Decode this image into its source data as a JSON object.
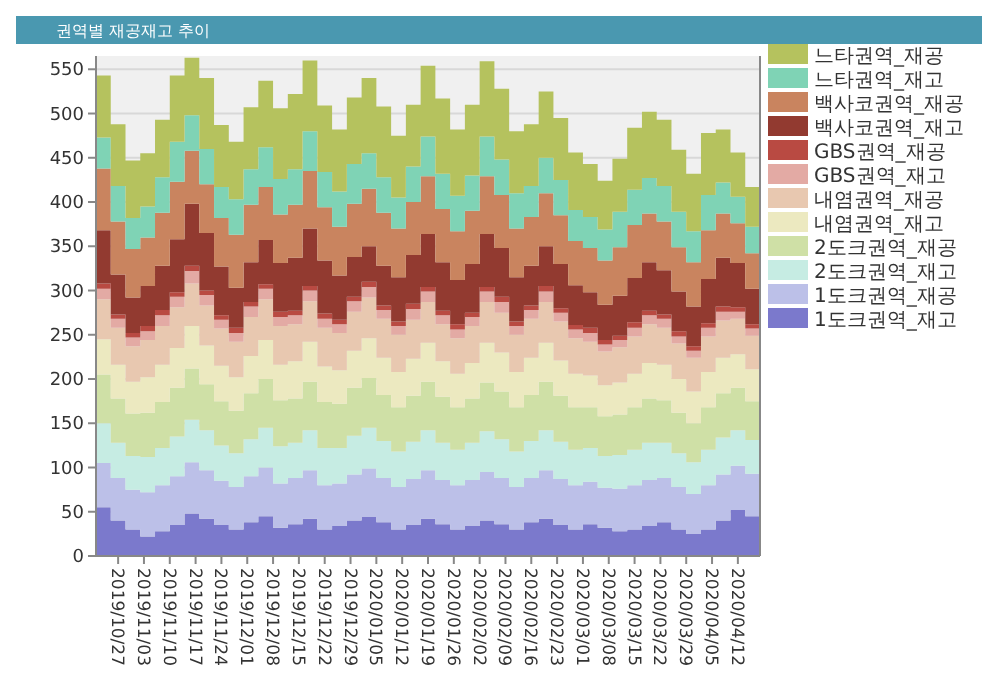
{
  "chart_data": {
    "type": "area",
    "title": "권역별 재공재고 추이",
    "stacked": true,
    "legend": "right",
    "grid": "y",
    "ylim": [
      0,
      565
    ],
    "yticks": [
      0,
      50,
      100,
      150,
      200,
      250,
      300,
      350,
      400,
      450,
      500,
      550
    ],
    "xlim": [
      "2019-10-21",
      "2020-04-18"
    ],
    "xticks": [
      {
        "value": "2019-10-27",
        "label": "2019/10/27"
      },
      {
        "value": "2019-11-03",
        "label": "2019/11/03"
      },
      {
        "value": "2019-11-10",
        "label": "2019/11/10"
      },
      {
        "value": "2019-11-17",
        "label": "2019/11/17"
      },
      {
        "value": "2019-11-24",
        "label": "2019/11/24"
      },
      {
        "value": "2019-12-01",
        "label": "2019/12/01"
      },
      {
        "value": "2019-12-08",
        "label": "2019/12/08"
      },
      {
        "value": "2019-12-15",
        "label": "2019/12/15"
      },
      {
        "value": "2019-12-22",
        "label": "2019/12/22"
      },
      {
        "value": "2019-12-29",
        "label": "2019/12/29"
      },
      {
        "value": "2020-01-05",
        "label": "2020/01/05"
      },
      {
        "value": "2020-01-12",
        "label": "2020/01/12"
      },
      {
        "value": "2020-01-19",
        "label": "2020/01/19"
      },
      {
        "value": "2020-01-26",
        "label": "2020/01/26"
      },
      {
        "value": "2020-02-02",
        "label": "2020/02/02"
      },
      {
        "value": "2020-02-09",
        "label": "2020/02/09"
      },
      {
        "value": "2020-02-16",
        "label": "2020/02/16"
      },
      {
        "value": "2020-02-23",
        "label": "2020/02/23"
      },
      {
        "value": "2020-03-01",
        "label": "2020/03/01"
      },
      {
        "value": "2020-03-08",
        "label": "2020/03/08"
      },
      {
        "value": "2020-03-15",
        "label": "2020/03/15"
      },
      {
        "value": "2020-03-22",
        "label": "2020/03/22"
      },
      {
        "value": "2020-03-29",
        "label": "2020/03/29"
      },
      {
        "value": "2020-04-05",
        "label": "2020/04/05"
      },
      {
        "value": "2020-04-12",
        "label": "2020/04/12"
      }
    ],
    "x": [
      "2019-10-21",
      "2019-10-25",
      "2019-10-29",
      "2019-11-02",
      "2019-11-06",
      "2019-11-10",
      "2019-11-14",
      "2019-11-18",
      "2019-11-22",
      "2019-11-26",
      "2019-11-30",
      "2019-12-04",
      "2019-12-08",
      "2019-12-12",
      "2019-12-16",
      "2019-12-20",
      "2019-12-24",
      "2019-12-28",
      "2020-01-01",
      "2020-01-05",
      "2020-01-09",
      "2020-01-13",
      "2020-01-17",
      "2020-01-21",
      "2020-01-25",
      "2020-01-29",
      "2020-02-02",
      "2020-02-06",
      "2020-02-10",
      "2020-02-14",
      "2020-02-18",
      "2020-02-22",
      "2020-02-26",
      "2020-03-01",
      "2020-03-05",
      "2020-03-09",
      "2020-03-13",
      "2020-03-17",
      "2020-03-21",
      "2020-03-25",
      "2020-03-29",
      "2020-04-02",
      "2020-04-06",
      "2020-04-10",
      "2020-04-14",
      "2020-04-18"
    ],
    "series": [
      {
        "name": "1도크권역_재고",
        "color": "#7b79cc",
        "values": [
          55,
          40,
          30,
          22,
          28,
          35,
          48,
          42,
          35,
          30,
          38,
          45,
          32,
          36,
          42,
          30,
          34,
          40,
          44,
          38,
          30,
          35,
          42,
          36,
          30,
          34,
          40,
          36,
          30,
          38,
          42,
          35,
          30,
          36,
          32,
          28,
          30,
          34,
          38,
          30,
          25,
          30,
          40,
          52,
          45,
          30
        ]
      },
      {
        "name": "1도크권역_재공",
        "color": "#bcc0e8",
        "values": [
          50,
          48,
          45,
          50,
          52,
          55,
          58,
          55,
          50,
          48,
          52,
          55,
          50,
          52,
          55,
          50,
          48,
          52,
          55,
          50,
          48,
          52,
          55,
          50,
          50,
          52,
          55,
          52,
          48,
          50,
          55,
          52,
          50,
          48,
          45,
          48,
          50,
          52,
          50,
          48,
          45,
          50,
          52,
          50,
          48,
          45
        ]
      },
      {
        "name": "2도크권역_재고",
        "color": "#c6ece3",
        "values": [
          45,
          40,
          38,
          40,
          42,
          45,
          48,
          45,
          40,
          38,
          42,
          45,
          42,
          40,
          45,
          42,
          40,
          44,
          46,
          42,
          40,
          42,
          45,
          42,
          40,
          42,
          46,
          44,
          40,
          42,
          45,
          42,
          40,
          38,
          36,
          38,
          40,
          42,
          40,
          38,
          36,
          40,
          42,
          40,
          38,
          36
        ]
      },
      {
        "name": "2도크권역_재공",
        "color": "#cfe0a6",
        "values": [
          55,
          50,
          48,
          50,
          52,
          55,
          58,
          52,
          50,
          48,
          52,
          55,
          52,
          50,
          55,
          52,
          50,
          54,
          56,
          52,
          50,
          52,
          55,
          52,
          48,
          50,
          55,
          54,
          50,
          52,
          55,
          52,
          48,
          46,
          45,
          46,
          48,
          50,
          48,
          46,
          44,
          48,
          50,
          48,
          44,
          42
        ]
      },
      {
        "name": "내염권역_재고",
        "color": "#ece9c0",
        "values": [
          40,
          38,
          36,
          40,
          42,
          45,
          48,
          44,
          40,
          38,
          42,
          44,
          40,
          42,
          45,
          40,
          38,
          42,
          45,
          42,
          40,
          42,
          44,
          40,
          38,
          40,
          45,
          44,
          40,
          42,
          44,
          40,
          38,
          36,
          35,
          36,
          38,
          40,
          40,
          38,
          36,
          40,
          40,
          38,
          36,
          34
        ]
      },
      {
        "name": "내염권역_재공",
        "color": "#e8c8b0",
        "values": [
          45,
          42,
          40,
          42,
          44,
          46,
          48,
          45,
          42,
          40,
          44,
          46,
          44,
          42,
          46,
          44,
          42,
          44,
          46,
          44,
          42,
          44,
          46,
          42,
          40,
          42,
          46,
          45,
          42,
          44,
          46,
          44,
          40,
          38,
          38,
          40,
          42,
          44,
          42,
          40,
          38,
          40,
          42,
          40,
          38,
          36
        ]
      },
      {
        "name": "GBS권역_재고",
        "color": "#e3aaa4",
        "values": [
          12,
          10,
          10,
          10,
          12,
          12,
          14,
          12,
          10,
          10,
          12,
          12,
          10,
          10,
          12,
          10,
          10,
          12,
          12,
          10,
          10,
          12,
          12,
          10,
          10,
          10,
          12,
          12,
          10,
          10,
          12,
          10,
          10,
          10,
          8,
          8,
          10,
          10,
          10,
          8,
          8,
          10,
          10,
          8,
          8,
          8
        ]
      },
      {
        "name": "GBS권역_재공",
        "color": "#b94a42",
        "values": [
          6,
          5,
          5,
          6,
          6,
          5,
          6,
          5,
          5,
          6,
          5,
          5,
          6,
          5,
          5,
          6,
          5,
          5,
          6,
          5,
          5,
          6,
          5,
          5,
          6,
          5,
          5,
          6,
          5,
          5,
          6,
          5,
          5,
          6,
          5,
          5,
          6,
          5,
          5,
          6,
          5,
          5,
          6,
          5,
          5,
          6
        ]
      },
      {
        "name": "백사코권역_재고",
        "color": "#923a30",
        "values": [
          60,
          45,
          40,
          45,
          50,
          60,
          70,
          65,
          55,
          45,
          45,
          50,
          55,
          60,
          65,
          60,
          50,
          45,
          40,
          45,
          50,
          55,
          60,
          55,
          50,
          55,
          60,
          55,
          50,
          45,
          45,
          50,
          45,
          40,
          40,
          45,
          50,
          55,
          50,
          45,
          45,
          50,
          55,
          50,
          40,
          30
        ]
      },
      {
        "name": "백사코권역_재공",
        "color": "#c9845f",
        "values": [
          70,
          60,
          55,
          55,
          60,
          65,
          60,
          55,
          55,
          60,
          65,
          60,
          55,
          60,
          65,
          60,
          55,
          60,
          65,
          60,
          55,
          60,
          65,
          60,
          55,
          60,
          65,
          60,
          55,
          55,
          60,
          55,
          50,
          50,
          50,
          55,
          60,
          55,
          55,
          50,
          50,
          55,
          50,
          45,
          40,
          35
        ]
      },
      {
        "name": "느타권역_재고",
        "color": "#7fd3b5",
        "values": [
          35,
          40,
          35,
          35,
          40,
          45,
          40,
          40,
          35,
          40,
          40,
          45,
          40,
          40,
          45,
          40,
          40,
          45,
          40,
          40,
          35,
          40,
          45,
          40,
          40,
          40,
          45,
          40,
          40,
          35,
          40,
          40,
          35,
          35,
          35,
          40,
          40,
          40,
          40,
          40,
          35,
          40,
          35,
          30,
          30,
          30
        ]
      },
      {
        "name": "느타권역_재공",
        "color": "#b5c25e",
        "values": [
          70,
          70,
          65,
          60,
          65,
          75,
          65,
          80,
          70,
          65,
          70,
          75,
          80,
          85,
          80,
          75,
          70,
          75,
          85,
          80,
          70,
          70,
          80,
          85,
          75,
          80,
          85,
          80,
          70,
          70,
          75,
          70,
          65,
          60,
          55,
          60,
          70,
          75,
          75,
          70,
          65,
          70,
          60,
          50,
          45,
          45
        ]
      }
    ]
  }
}
